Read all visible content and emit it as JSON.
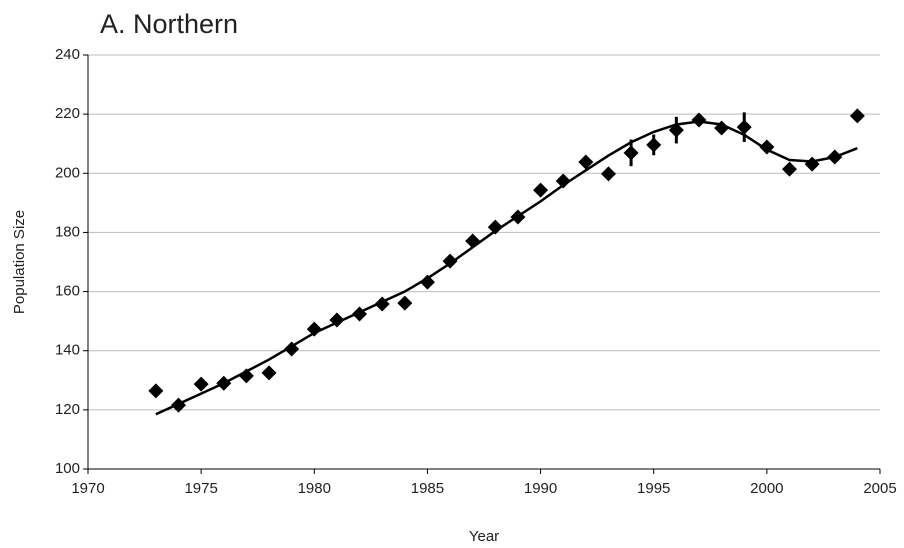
{
  "chart_data": {
    "type": "scatter",
    "title": "A. Northern",
    "x_label": "Year",
    "y_label": "Population Size",
    "xlim": [
      1970,
      2005
    ],
    "xticks": [
      1970,
      1975,
      1980,
      1985,
      1990,
      1995,
      2000,
      2005
    ],
    "ylim": [
      100,
      240
    ],
    "yticks": [
      100,
      120,
      140,
      160,
      180,
      200,
      220,
      240
    ],
    "grid": true,
    "series": [
      {
        "color": "#000000",
        "x": [
          1973,
          1974,
          1975,
          1976,
          1977,
          1978,
          1979,
          1980,
          1981,
          1982,
          1983,
          1984,
          1985,
          1986,
          1987,
          1988,
          1989,
          1990,
          1991,
          1992,
          1993,
          1994,
          1995,
          1996,
          1997,
          1998,
          1999,
          2000,
          2001,
          2002,
          2003,
          2004
        ],
        "values": [
          126.4,
          121.6,
          128.7,
          129,
          131.5,
          132.5,
          140.6,
          147.3,
          150.4,
          152.4,
          155.8,
          156.1,
          163.2,
          170.3,
          177.1,
          181.8,
          185.2,
          194.3,
          197.4,
          203.8,
          199.8,
          206.9,
          209.6,
          214.6,
          218,
          215.3,
          215.6,
          208.9,
          201.4,
          203.1,
          205.5,
          219.4
        ],
        "errors": [
          1,
          1,
          1,
          2,
          1,
          1,
          1,
          1,
          1,
          1,
          1,
          1,
          1,
          1,
          1,
          1,
          1,
          1,
          1,
          1,
          2,
          4.5,
          3.5,
          4.5,
          1,
          2,
          5,
          1,
          1,
          1,
          1,
          1
        ]
      }
    ],
    "fit": {
      "color": "#000000",
      "x": [
        1973,
        1974,
        1975,
        1976,
        1977,
        1978,
        1979,
        1980,
        1981,
        1982,
        1983,
        1984,
        1985,
        1986,
        1987,
        1988,
        1989,
        1990,
        1991,
        1992,
        1993,
        1994,
        1995,
        1996,
        1997,
        1998,
        1999,
        2000,
        2001,
        2002,
        2003,
        2004
      ],
      "values": [
        118.5,
        122,
        125.5,
        129,
        133,
        137,
        141.5,
        146,
        149.5,
        153,
        156.5,
        160,
        164.5,
        169.5,
        175,
        180.5,
        185.5,
        190.5,
        196,
        201,
        206,
        210.5,
        214,
        216.5,
        217.5,
        216.5,
        213,
        208,
        204.5,
        204,
        205.5,
        208.5
      ]
    }
  }
}
